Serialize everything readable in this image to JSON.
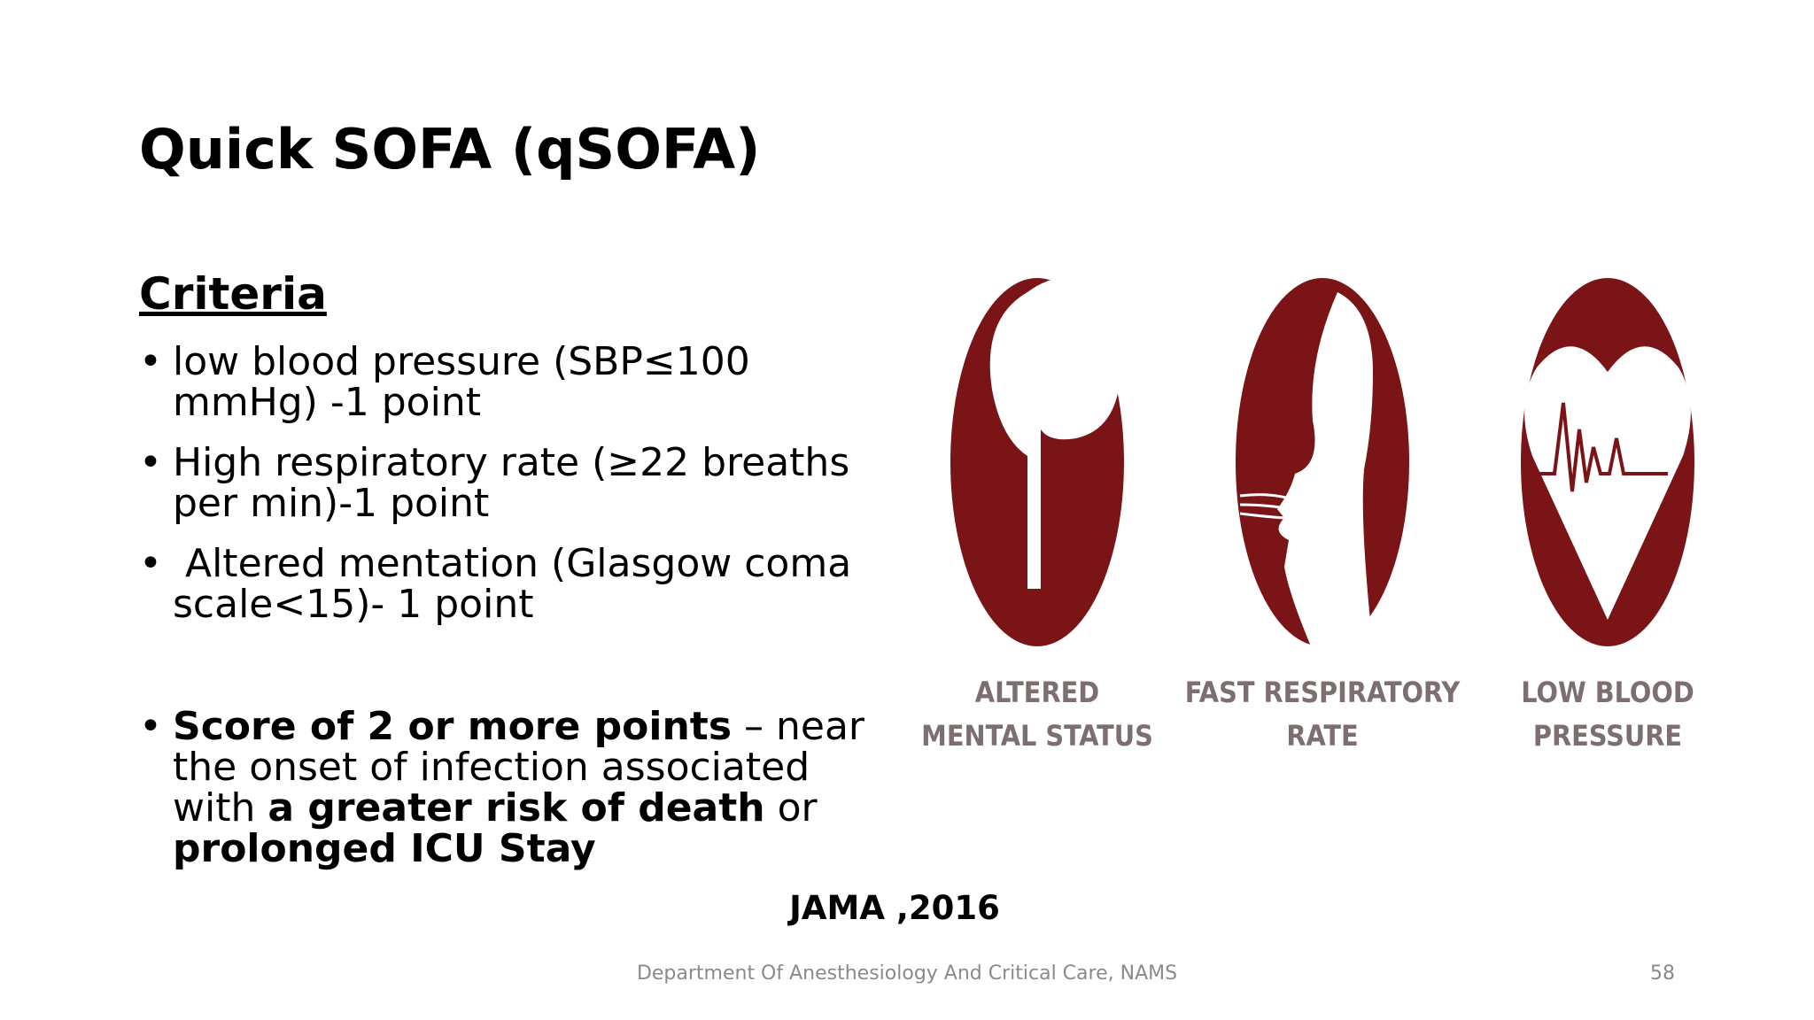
{
  "slide": {
    "title": "Quick SOFA (qSOFA)",
    "heading": "Criteria",
    "bullets": [
      {
        "lines": [
          [
            {
              "text": "low blood pressure (SBP≤100",
              "bold": false
            }
          ],
          [
            {
              "text": "mmHg) -1 point",
              "bold": false
            }
          ]
        ]
      },
      {
        "lines": [
          [
            {
              "text": "High respiratory rate (≥22 breaths",
              "bold": false
            }
          ],
          [
            {
              "text": "per min)-1 point",
              "bold": false
            }
          ]
        ]
      },
      {
        "lines": [
          [
            {
              "text": " Altered mentation (Glasgow coma",
              "bold": false
            }
          ],
          [
            {
              "text": "scale<15)- 1 point",
              "bold": false
            }
          ]
        ]
      },
      {
        "lines": [
          [
            {
              "text": "Score of 2 or more points",
              "bold": true
            },
            {
              "text": " – near",
              "bold": false
            }
          ],
          [
            {
              "text": "the onset of infection associated",
              "bold": false
            }
          ],
          [
            {
              "text": "with ",
              "bold": false
            },
            {
              "text": "a greater risk of death",
              "bold": true
            },
            {
              "text": " or",
              "bold": false
            }
          ],
          [
            {
              "text": "prolonged ICU Stay",
              "bold": true
            }
          ]
        ]
      }
    ],
    "icons": [
      {
        "lines": [
          "ALTERED",
          "MENTAL STATUS"
        ]
      },
      {
        "lines": [
          "FAST RESPIRATORY",
          "RATE"
        ]
      },
      {
        "lines": [
          "LOW BLOOD",
          "PRESSURE"
        ]
      }
    ],
    "citation": "JAMA ,2016",
    "footer": "Department Of Anesthesiology And Critical Care, NAMS",
    "page_number": "58"
  }
}
